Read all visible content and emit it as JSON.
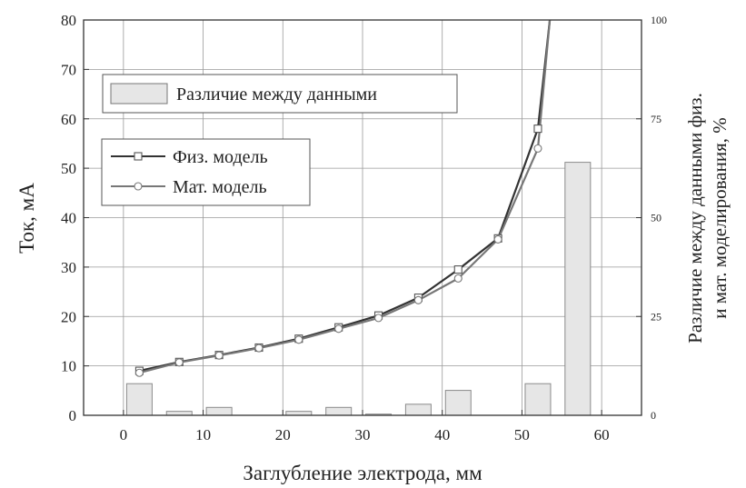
{
  "chart_data": {
    "type": "line",
    "xlabel": "Заглубление электрода, мм",
    "ylabel": "Ток, мА",
    "y2label_lines": [
      "Различие между данными физ.",
      "и мат. моделирования, %"
    ],
    "xlim": [
      -5,
      65
    ],
    "ylim": [
      0,
      80
    ],
    "y2lim": [
      0,
      100
    ],
    "x_ticks": [
      0,
      10,
      20,
      30,
      40,
      50,
      60
    ],
    "y_ticks": [
      0,
      10,
      20,
      30,
      40,
      50,
      60,
      70,
      80
    ],
    "y2_ticks": [
      0,
      25,
      50,
      75,
      100
    ],
    "grid": true,
    "legend_bar_label": "Различие между данными",
    "series": [
      {
        "name": "Физ. модель",
        "marker": "square",
        "x": [
          2,
          7,
          12,
          17,
          22,
          27,
          32,
          37,
          42,
          47,
          52,
          53.5
        ],
        "y": [
          9,
          10.8,
          12.2,
          13.7,
          15.5,
          17.8,
          20.2,
          23.8,
          29.5,
          35.8,
          58,
          80
        ]
      },
      {
        "name": "Мат. модель",
        "marker": "circle",
        "x": [
          2,
          7,
          12,
          17,
          22,
          27,
          32,
          37,
          42,
          47,
          52,
          53.5
        ],
        "y": [
          8.6,
          10.7,
          12.1,
          13.6,
          15.3,
          17.5,
          19.7,
          23.3,
          27.7,
          35.6,
          54,
          80
        ]
      }
    ],
    "bars": {
      "name": "Различие между данными",
      "x": [
        2,
        7,
        12,
        22,
        27,
        32,
        37,
        42,
        52,
        57
      ],
      "values": [
        8,
        1,
        2,
        1,
        2,
        0.3,
        2.8,
        6.3,
        8,
        64
      ]
    }
  }
}
